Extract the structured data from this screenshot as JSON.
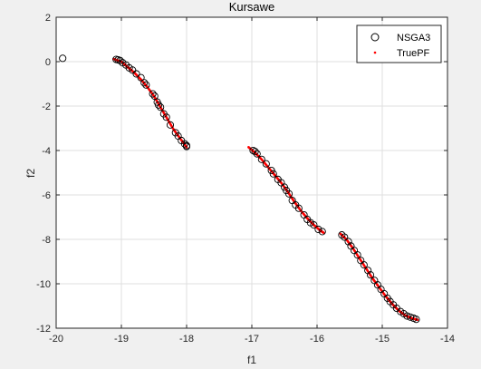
{
  "chart_data": {
    "type": "scatter",
    "title": "Kursawe",
    "xlabel": "f1",
    "ylabel": "f2",
    "xlim": [
      -20,
      -14
    ],
    "ylim": [
      -12,
      2
    ],
    "xticks": [
      -20,
      -19,
      -18,
      -17,
      -16,
      -15,
      -14
    ],
    "yticks": [
      -12,
      -10,
      -8,
      -6,
      -4,
      -2,
      0,
      2
    ],
    "xtick_labels": [
      "-20",
      "-19",
      "-18",
      "-17",
      "-16",
      "-15",
      "-14"
    ],
    "ytick_labels": [
      "-12",
      "-10",
      "-8",
      "-6",
      "-4",
      "-2",
      "0",
      "2"
    ],
    "grid": true,
    "legend_position": "top-right",
    "colors": {
      "nsga3": "#000000",
      "truepf": "#ff0000",
      "axes_bg": "#ffffff",
      "figure_bg": "#f0f0f0",
      "grid": "#dfdfdf"
    },
    "series": [
      {
        "name": "NSGA3",
        "marker": "circle-open",
        "points": [
          [
            -19.9,
            0.15
          ],
          [
            -19.08,
            0.1
          ],
          [
            -19.05,
            0.08
          ],
          [
            -19.02,
            0.05
          ],
          [
            -18.98,
            -0.05
          ],
          [
            -18.93,
            -0.15
          ],
          [
            -18.88,
            -0.28
          ],
          [
            -18.83,
            -0.38
          ],
          [
            -18.77,
            -0.55
          ],
          [
            -18.7,
            -0.72
          ],
          [
            -18.65,
            -0.95
          ],
          [
            -18.62,
            -1.05
          ],
          [
            -18.52,
            -1.45
          ],
          [
            -18.49,
            -1.55
          ],
          [
            -18.45,
            -1.82
          ],
          [
            -18.43,
            -1.95
          ],
          [
            -18.4,
            -2.05
          ],
          [
            -18.35,
            -2.35
          ],
          [
            -18.31,
            -2.5
          ],
          [
            -18.25,
            -2.85
          ],
          [
            -18.17,
            -3.2
          ],
          [
            -18.13,
            -3.35
          ],
          [
            -18.08,
            -3.55
          ],
          [
            -18.03,
            -3.7
          ],
          [
            -18.0,
            -3.78
          ],
          [
            -18.0,
            -3.82
          ],
          [
            -16.98,
            -4.0
          ],
          [
            -16.95,
            -4.05
          ],
          [
            -16.92,
            -4.15
          ],
          [
            -16.85,
            -4.4
          ],
          [
            -16.78,
            -4.6
          ],
          [
            -16.7,
            -4.9
          ],
          [
            -16.67,
            -5.05
          ],
          [
            -16.6,
            -5.3
          ],
          [
            -16.55,
            -5.45
          ],
          [
            -16.5,
            -5.65
          ],
          [
            -16.47,
            -5.8
          ],
          [
            -16.43,
            -5.95
          ],
          [
            -16.38,
            -6.25
          ],
          [
            -16.33,
            -6.45
          ],
          [
            -16.28,
            -6.6
          ],
          [
            -16.2,
            -6.9
          ],
          [
            -16.15,
            -7.1
          ],
          [
            -16.1,
            -7.25
          ],
          [
            -16.05,
            -7.35
          ],
          [
            -15.98,
            -7.55
          ],
          [
            -15.92,
            -7.65
          ],
          [
            -15.62,
            -7.8
          ],
          [
            -15.58,
            -7.9
          ],
          [
            -15.52,
            -8.1
          ],
          [
            -15.48,
            -8.3
          ],
          [
            -15.43,
            -8.5
          ],
          [
            -15.38,
            -8.7
          ],
          [
            -15.33,
            -8.95
          ],
          [
            -15.28,
            -9.15
          ],
          [
            -15.22,
            -9.4
          ],
          [
            -15.18,
            -9.6
          ],
          [
            -15.12,
            -9.85
          ],
          [
            -15.07,
            -10.05
          ],
          [
            -15.02,
            -10.25
          ],
          [
            -14.97,
            -10.45
          ],
          [
            -14.92,
            -10.65
          ],
          [
            -14.88,
            -10.8
          ],
          [
            -14.83,
            -10.95
          ],
          [
            -14.78,
            -11.1
          ],
          [
            -14.72,
            -11.25
          ],
          [
            -14.67,
            -11.35
          ],
          [
            -14.62,
            -11.45
          ],
          [
            -14.57,
            -11.5
          ],
          [
            -14.52,
            -11.55
          ],
          [
            -14.48,
            -11.6
          ]
        ]
      },
      {
        "name": "TruePF",
        "marker": "dot",
        "segments": [
          [
            [
              -19.12,
              0.12
            ],
            [
              -19.0,
              0.0
            ],
            [
              -18.9,
              -0.25
            ],
            [
              -18.8,
              -0.5
            ],
            [
              -18.7,
              -0.8
            ],
            [
              -18.6,
              -1.15
            ],
            [
              -18.5,
              -1.55
            ],
            [
              -18.4,
              -2.05
            ],
            [
              -18.3,
              -2.55
            ],
            [
              -18.2,
              -3.05
            ],
            [
              -18.1,
              -3.45
            ],
            [
              -18.0,
              -3.85
            ]
          ],
          [
            [
              -17.05,
              -3.85
            ],
            [
              -16.95,
              -4.1
            ],
            [
              -16.85,
              -4.4
            ],
            [
              -16.75,
              -4.75
            ],
            [
              -16.65,
              -5.1
            ],
            [
              -16.55,
              -5.45
            ],
            [
              -16.45,
              -5.85
            ],
            [
              -16.35,
              -6.3
            ],
            [
              -16.25,
              -6.7
            ],
            [
              -16.15,
              -7.05
            ],
            [
              -16.05,
              -7.35
            ],
            [
              -15.95,
              -7.6
            ],
            [
              -15.9,
              -7.7
            ]
          ],
          [
            [
              -15.64,
              -7.75
            ],
            [
              -15.55,
              -8.0
            ],
            [
              -15.45,
              -8.4
            ],
            [
              -15.35,
              -8.85
            ],
            [
              -15.25,
              -9.3
            ],
            [
              -15.15,
              -9.75
            ],
            [
              -15.05,
              -10.15
            ],
            [
              -14.95,
              -10.55
            ],
            [
              -14.85,
              -10.9
            ],
            [
              -14.75,
              -11.2
            ],
            [
              -14.65,
              -11.42
            ],
            [
              -14.55,
              -11.55
            ],
            [
              -14.46,
              -11.62
            ]
          ]
        ]
      }
    ]
  }
}
